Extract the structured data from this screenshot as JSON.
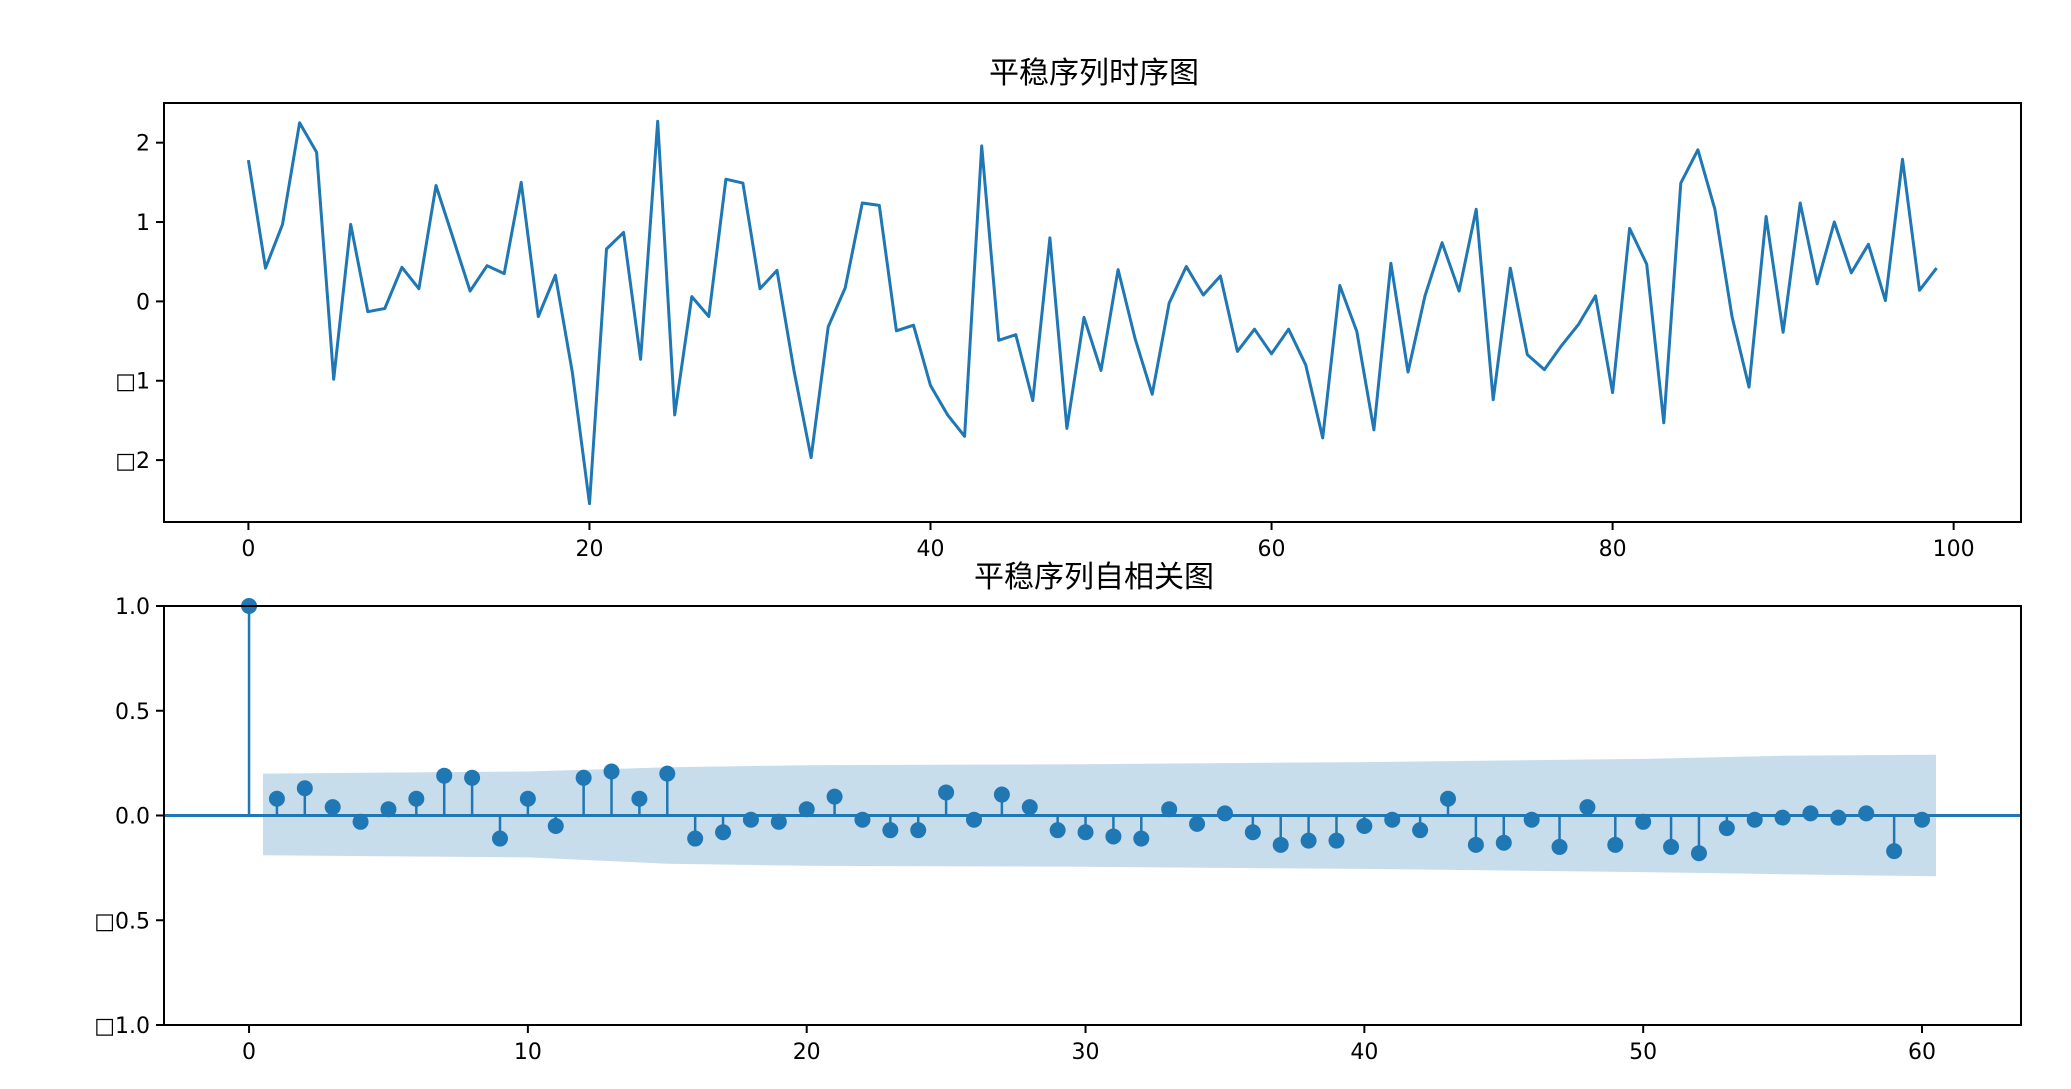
{
  "colors": {
    "series": "#1f77b4",
    "confidence_band": "#1f77b4",
    "axis": "#000000"
  },
  "chart_data": [
    {
      "type": "line",
      "title": "平稳序列时序图",
      "xlabel": "",
      "ylabel": "",
      "xlim": [
        -4.95,
        103.95
      ],
      "ylim": [
        -2.78,
        2.5
      ],
      "grid": false,
      "x_ticks": [
        0,
        20,
        40,
        60,
        80,
        100
      ],
      "x_tick_labels": [
        "0",
        "20",
        "40",
        "60",
        "80",
        "100"
      ],
      "y_ticks": [
        2,
        1,
        0,
        -1,
        -2
      ],
      "y_tick_labels": [
        "2",
        "1",
        "0",
        "□1",
        "□2"
      ],
      "series": [
        {
          "x": [
            0,
            1,
            2,
            3,
            4,
            5,
            6,
            7,
            8,
            9,
            10,
            11,
            12,
            13,
            14,
            15,
            16,
            17,
            18,
            19,
            20,
            21,
            22,
            23,
            24,
            25,
            26,
            27,
            28,
            29,
            30,
            31,
            32,
            33,
            34,
            35,
            36,
            37,
            38,
            39,
            40,
            41,
            42,
            43,
            44,
            45,
            46,
            47,
            48,
            49,
            50,
            51,
            52,
            53,
            54,
            55,
            56,
            57,
            58,
            59,
            60,
            61,
            62,
            63,
            64,
            65,
            66,
            67,
            68,
            69,
            70,
            71,
            72,
            73,
            74,
            75,
            76,
            77,
            78,
            79,
            80,
            81,
            82,
            83,
            84,
            85,
            86,
            87,
            88,
            89,
            90,
            91,
            92,
            93,
            94,
            95,
            96,
            97,
            98,
            99
          ],
          "values": [
            1.78,
            0.42,
            0.97,
            2.25,
            1.88,
            -0.98,
            0.97,
            -0.13,
            -0.09,
            0.43,
            0.16,
            1.46,
            0.8,
            0.13,
            0.45,
            0.35,
            1.5,
            -0.19,
            0.33,
            -0.9,
            -2.55,
            0.66,
            0.87,
            -0.73,
            2.27,
            -1.43,
            0.06,
            -0.19,
            1.54,
            1.49,
            0.16,
            0.39,
            -0.88,
            -1.97,
            -0.32,
            0.17,
            1.24,
            1.21,
            -0.37,
            -0.3,
            -1.06,
            -1.43,
            -1.7,
            1.96,
            -0.49,
            -0.42,
            -1.25,
            0.8,
            -1.6,
            -0.2,
            -0.87,
            0.4,
            -0.47,
            -1.17,
            -0.02,
            0.44,
            0.08,
            0.32,
            -0.63,
            -0.35,
            -0.66,
            -0.35,
            -0.8,
            -1.72,
            0.2,
            -0.38,
            -1.62,
            0.48,
            -0.89,
            0.07,
            0.74,
            0.13,
            1.16,
            -1.24,
            0.42,
            -0.67,
            -0.86,
            -0.56,
            -0.29,
            0.07,
            -1.15,
            0.92,
            0.47,
            -1.53,
            1.49,
            1.91,
            1.16,
            -0.19,
            -1.08,
            1.07,
            -0.39,
            1.24,
            0.22,
            1.0,
            0.36,
            0.72,
            0.01,
            1.79,
            0.14,
            0.42
          ]
        }
      ]
    },
    {
      "type": "stem",
      "title": "平稳序列自相关图",
      "xlabel": "",
      "ylabel": "",
      "xlim": [
        -3.05,
        63.55
      ],
      "ylim": [
        -1.0,
        1.0
      ],
      "grid": false,
      "x_ticks": [
        0,
        10,
        20,
        30,
        40,
        50,
        60
      ],
      "x_tick_labels": [
        "0",
        "10",
        "20",
        "30",
        "40",
        "50",
        "60"
      ],
      "y_ticks": [
        1.0,
        0.5,
        0.0,
        -0.5,
        -1.0
      ],
      "y_tick_labels": [
        "1.0",
        "0.5",
        "0.0",
        "□0.5",
        "□1.0"
      ],
      "lags": [
        0,
        1,
        2,
        3,
        4,
        5,
        6,
        7,
        8,
        9,
        10,
        11,
        12,
        13,
        14,
        15,
        16,
        17,
        18,
        19,
        20,
        21,
        22,
        23,
        24,
        25,
        26,
        27,
        28,
        29,
        30,
        31,
        32,
        33,
        34,
        35,
        36,
        37,
        38,
        39,
        40,
        41,
        42,
        43,
        44,
        45,
        46,
        47,
        48,
        49,
        50,
        51,
        52,
        53,
        54,
        55,
        56,
        57,
        58,
        59,
        60
      ],
      "values": [
        1.0,
        0.08,
        0.13,
        0.04,
        -0.03,
        0.03,
        0.08,
        0.19,
        0.18,
        -0.11,
        0.08,
        -0.05,
        0.18,
        0.21,
        0.08,
        0.2,
        -0.11,
        -0.08,
        -0.02,
        -0.03,
        0.03,
        0.09,
        -0.02,
        -0.07,
        -0.07,
        0.11,
        -0.02,
        0.1,
        0.04,
        -0.07,
        -0.08,
        -0.1,
        -0.11,
        0.03,
        -0.04,
        0.01,
        -0.08,
        -0.14,
        -0.12,
        -0.12,
        -0.05,
        -0.02,
        -0.07,
        0.08,
        -0.14,
        -0.13,
        -0.02,
        -0.15,
        0.04,
        -0.14,
        -0.03,
        -0.15,
        -0.18,
        -0.06,
        -0.02,
        -0.01,
        0.01,
        -0.01,
        0.01,
        -0.17,
        -0.02
      ],
      "confidence_band": {
        "x": [
          0.5,
          10,
          15,
          20,
          30,
          40,
          50,
          55,
          60.5
        ],
        "upper": [
          0.2,
          0.21,
          0.23,
          0.24,
          0.245,
          0.255,
          0.27,
          0.285,
          0.29
        ],
        "lower": [
          -0.19,
          -0.2,
          -0.23,
          -0.24,
          -0.245,
          -0.255,
          -0.27,
          -0.28,
          -0.29
        ]
      }
    }
  ]
}
